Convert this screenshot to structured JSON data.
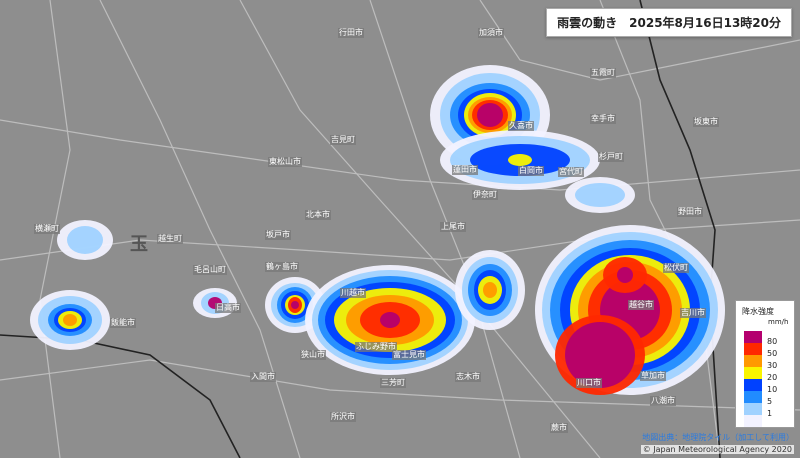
{
  "header": {
    "title": "雨雲の動き",
    "datetime": "2025年8月16日13時20分"
  },
  "legend": {
    "title": "降水強度",
    "unit": "mm/h",
    "levels": [
      {
        "value": "80",
        "color": "#b4006e"
      },
      {
        "value": "50",
        "color": "#ff2800"
      },
      {
        "value": "30",
        "color": "#ff9900"
      },
      {
        "value": "20",
        "color": "#faf500"
      },
      {
        "value": "10",
        "color": "#0041ff"
      },
      {
        "value": "5",
        "color": "#218cff"
      },
      {
        "value": "1",
        "color": "#a0d2ff"
      },
      {
        "value": "",
        "color": "#f2f2ff"
      }
    ]
  },
  "places": [
    "川越市",
    "ふじみ野市",
    "富士見市",
    "越谷市",
    "川口市",
    "草加市",
    "吉川市",
    "松伏町",
    "野田市",
    "久喜市",
    "白岡市",
    "宮代町",
    "杉戸町",
    "幸手市",
    "五霞町",
    "伊奈町",
    "蓮田市",
    "飯能市",
    "日高市",
    "鶴ヶ島市",
    "毛呂山町",
    "越生町",
    "横瀬町",
    "狭山市",
    "三芳町",
    "志木市",
    "八潮市",
    "蕨市",
    "行田市",
    "加須市",
    "坂東市",
    "東松山市",
    "吉見町",
    "北本市",
    "上尾市",
    "坂戸市",
    "入間市",
    "所沢市",
    "玉"
  ],
  "attribution": {
    "tiles": "地図出典：地理院タイル（加工して利用）",
    "copyright": "© Japan Meteorological Agency 2020"
  }
}
